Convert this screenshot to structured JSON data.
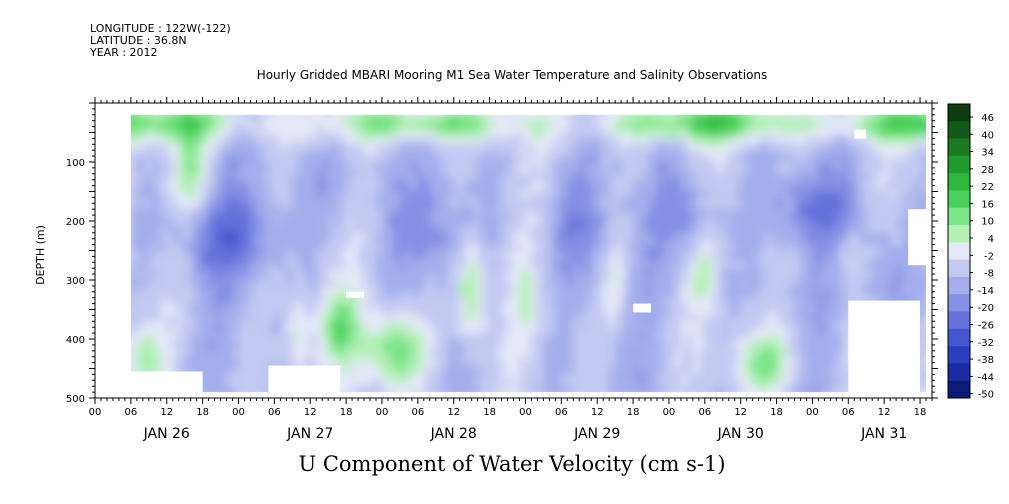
{
  "header": {
    "longitude": "LONGITUDE : 122W(-122)",
    "latitude": "LATITUDE : 36.8N",
    "year": "YEAR : 2012",
    "title": "Hourly Gridded MBARI Mooring M1 Sea Water Temperature and Salinity Observations"
  },
  "footer": {
    "variable_title": "U Component of Water Velocity (cm s-1)"
  },
  "chart_data": {
    "type": "heatmap",
    "title": "Hourly Gridded MBARI Mooring M1 Sea Water Temperature and Salinity Observations",
    "variable": "U Component of Water Velocity (cm s-1)",
    "ylabel": "DEPTH (m)",
    "y_reversed": true,
    "ylim": [
      500,
      0
    ],
    "y_ticks": [
      100,
      200,
      300,
      400,
      500
    ],
    "x_range": [
      "2012-01-26T00:00",
      "2012-01-31T20:00"
    ],
    "x_hour_ticks": [
      "00",
      "06",
      "12",
      "18",
      "00",
      "06",
      "12",
      "18",
      "00",
      "06",
      "12",
      "18",
      "00",
      "06",
      "12",
      "18",
      "00",
      "06",
      "12",
      "18",
      "00",
      "06",
      "12",
      "18"
    ],
    "x_day_labels": [
      "JAN 26",
      "JAN 27",
      "JAN 28",
      "JAN 29",
      "JAN 30",
      "JAN 31"
    ],
    "data_extent_hours": [
      6,
      139
    ],
    "data_extent_depth": [
      20,
      490
    ],
    "colorbar": {
      "levels": [
        "46",
        "40",
        "34",
        "28",
        "22",
        "16",
        "10",
        "4",
        "-2",
        "-8",
        "-14",
        "-20",
        "-26",
        "-32",
        "-38",
        "-44",
        "-50"
      ],
      "colors": [
        "#0c3d10",
        "#135a18",
        "#1a7a22",
        "#229a2e",
        "#2fb83e",
        "#4cd05c",
        "#7be488",
        "#b4f0b8",
        "#e4e8f8",
        "#c2c9f2",
        "#a4aeec",
        "#8390e4",
        "#6472da",
        "#4656cf",
        "#2a3ec0",
        "#1a2ca0",
        "#0c1a78"
      ]
    },
    "value_range_shown": [
      -32,
      22
    ],
    "dominant_pattern": "Weak westward (negative) flow of -5 to -20 cm/s across most depths; eastward (positive, green) flow concentrated near the surface (20-60 m) and in vertical bands near the bottom; strongest westward cores ~-25 cm/s around 150-250 m on JAN 26, JAN 30 and JAN 31",
    "missing_blocks": [
      {
        "t_start_h": 6,
        "t_end_h": 18,
        "depth_top": 455,
        "depth_bottom": 490
      },
      {
        "t_start_h": 29,
        "t_end_h": 41,
        "depth_top": 445,
        "depth_bottom": 490
      },
      {
        "t_start_h": 42,
        "t_end_h": 45,
        "depth_top": 320,
        "depth_bottom": 330
      },
      {
        "t_start_h": 90,
        "t_end_h": 93,
        "depth_top": 340,
        "depth_bottom": 355
      },
      {
        "t_start_h": 127,
        "t_end_h": 129,
        "depth_top": 45,
        "depth_bottom": 60
      },
      {
        "t_start_h": 126,
        "t_end_h": 138,
        "depth_top": 335,
        "depth_bottom": 490
      },
      {
        "t_start_h": 136,
        "t_end_h": 139,
        "depth_top": 180,
        "depth_bottom": 275
      }
    ]
  }
}
